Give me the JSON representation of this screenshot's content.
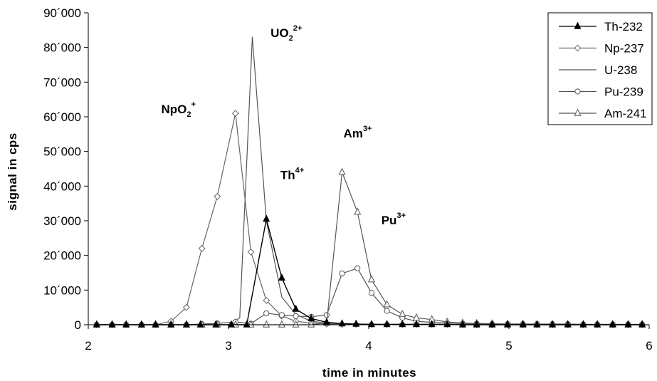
{
  "chart_data": {
    "type": "line",
    "xlabel": "time in minutes",
    "ylabel": "signal in cps",
    "xlim": [
      2,
      6
    ],
    "ylim": [
      0,
      90000
    ],
    "xticks": [
      2,
      3,
      4,
      5,
      6
    ],
    "yticks": [
      0,
      10000,
      20000,
      30000,
      40000,
      50000,
      60000,
      70000,
      80000,
      90000
    ],
    "ytick_labels": [
      "0",
      "10´000",
      "20´000",
      "30´000",
      "40´000",
      "50´000",
      "60´000",
      "70´000",
      "80´000",
      "90´000"
    ],
    "grid": false,
    "legend_position": "top-right",
    "annotations": [
      {
        "base": "NpO",
        "sub": "2",
        "sup": "+",
        "x": 2.52,
        "y": 61000
      },
      {
        "base": "UO",
        "sub": "2",
        "sup": "2+",
        "x": 3.3,
        "y": 83000
      },
      {
        "base": "Th",
        "sub": "",
        "sup": "4+",
        "x": 3.37,
        "y": 42000
      },
      {
        "base": "Am",
        "sub": "",
        "sup": "3+",
        "x": 3.82,
        "y": 54000
      },
      {
        "base": "Pu",
        "sub": "",
        "sup": "3+",
        "x": 4.09,
        "y": 29000
      }
    ],
    "series": [
      {
        "name": "Th-232",
        "marker": "triangle-filled",
        "color": "#000000",
        "x": [
          2.06,
          2.17,
          2.27,
          2.38,
          2.48,
          2.59,
          2.7,
          2.8,
          2.91,
          3.02,
          3.13,
          3.27,
          3.38,
          3.48,
          3.59,
          3.7,
          3.81,
          3.91,
          4.02,
          4.13,
          4.24,
          4.34,
          4.45,
          4.56,
          4.67,
          4.77,
          4.88,
          4.99,
          5.1,
          5.2,
          5.31,
          5.42,
          5.53,
          5.63,
          5.74,
          5.85,
          5.95
        ],
        "y": [
          0,
          0,
          0,
          0,
          0,
          0,
          0,
          0,
          0,
          0,
          0,
          30500,
          13500,
          4500,
          1800,
          700,
          300,
          200,
          100,
          100,
          100,
          100,
          100,
          100,
          0,
          0,
          0,
          0,
          0,
          0,
          0,
          0,
          0,
          0,
          0,
          0,
          0
        ]
      },
      {
        "name": "Np-237",
        "marker": "diamond-open",
        "color": "#666666",
        "x": [
          2.06,
          2.17,
          2.27,
          2.38,
          2.48,
          2.59,
          2.7,
          2.81,
          2.92,
          3.05,
          3.16,
          3.27,
          3.38,
          3.48,
          3.59,
          3.7,
          3.81,
          3.91,
          4.02,
          4.13,
          4.24,
          4.34,
          4.45,
          4.56,
          4.67,
          4.77,
          4.88,
          4.99,
          5.1,
          5.2,
          5.31,
          5.42,
          5.53,
          5.63,
          5.74,
          5.85,
          5.95
        ],
        "y": [
          0,
          0,
          0,
          0,
          0,
          1000,
          5000,
          22000,
          37000,
          61000,
          21000,
          7000,
          2500,
          1000,
          500,
          200,
          100,
          100,
          100,
          100,
          100,
          100,
          100,
          100,
          0,
          0,
          0,
          0,
          0,
          0,
          0,
          0,
          0,
          0,
          0,
          0,
          0
        ]
      },
      {
        "name": "U-238",
        "marker": "none",
        "color": "#555555",
        "x": [
          2.06,
          2.5,
          3.0,
          3.08,
          3.17,
          3.27,
          3.38,
          3.48,
          3.59,
          3.7,
          3.81,
          4.0,
          4.5,
          5.0,
          5.5,
          6.0
        ],
        "y": [
          0,
          0,
          0,
          2000,
          83000,
          30000,
          8000,
          3000,
          1000,
          500,
          200,
          100,
          100,
          0,
          0,
          0
        ]
      },
      {
        "name": "Pu-239",
        "marker": "circle-open",
        "color": "#555555",
        "x": [
          2.06,
          2.17,
          2.27,
          2.38,
          2.48,
          2.59,
          2.7,
          2.81,
          2.92,
          3.05,
          3.16,
          3.27,
          3.38,
          3.48,
          3.59,
          3.7,
          3.81,
          3.92,
          4.02,
          4.13,
          4.24,
          4.34,
          4.45,
          4.56,
          4.67,
          4.77,
          4.88,
          4.99,
          5.1,
          5.2,
          5.31,
          5.42,
          5.53,
          5.63,
          5.74,
          5.85,
          5.95
        ],
        "y": [
          0,
          0,
          0,
          0,
          0,
          0,
          0,
          200,
          400,
          800,
          300,
          3300,
          2800,
          2500,
          2300,
          2800,
          14800,
          16300,
          9200,
          4000,
          2000,
          1000,
          700,
          500,
          300,
          300,
          200,
          200,
          200,
          200,
          200,
          200,
          100,
          100,
          100,
          100,
          100
        ]
      },
      {
        "name": "Am-241",
        "marker": "triangle-open",
        "color": "#555555",
        "x": [
          2.06,
          2.17,
          2.27,
          2.38,
          2.48,
          2.59,
          2.7,
          2.81,
          2.92,
          3.05,
          3.16,
          3.27,
          3.38,
          3.48,
          3.59,
          3.7,
          3.81,
          3.92,
          4.02,
          4.13,
          4.24,
          4.34,
          4.45,
          4.56,
          4.67,
          4.77,
          4.88,
          4.99,
          5.1,
          5.2,
          5.31,
          5.42,
          5.53,
          5.63,
          5.74,
          5.85,
          5.95
        ],
        "y": [
          0,
          0,
          0,
          0,
          0,
          0,
          0,
          0,
          0,
          0,
          0,
          0,
          0,
          0,
          0,
          500,
          44000,
          32500,
          13000,
          5800,
          3000,
          2000,
          1500,
          800,
          500,
          400,
          300,
          200,
          200,
          100,
          100,
          100,
          100,
          100,
          100,
          100,
          100
        ]
      }
    ]
  }
}
